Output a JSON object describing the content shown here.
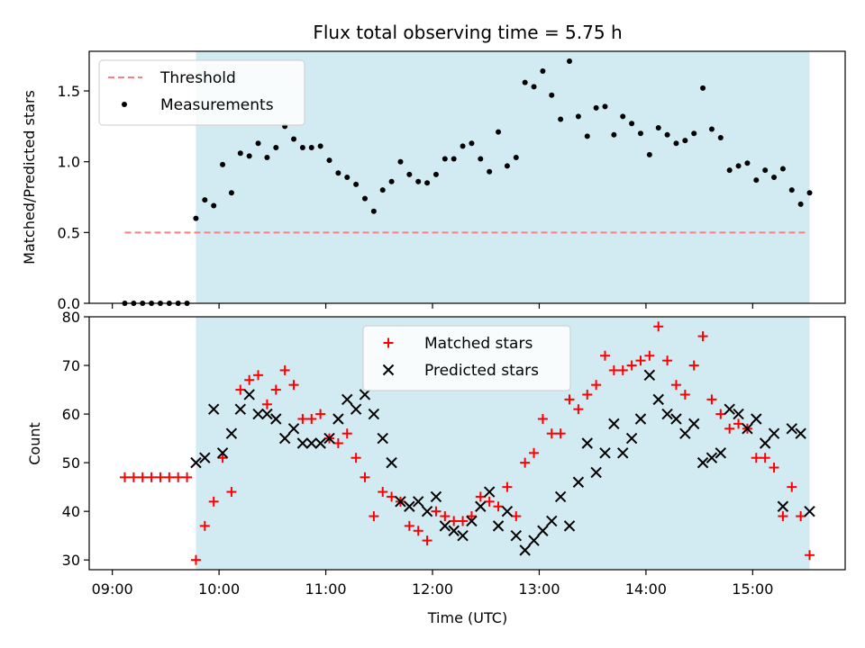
{
  "chart_data": [
    {
      "type": "scatter",
      "title": "Flux total observing time = 5.75 h",
      "ylabel": "Matched/Predicted stars",
      "xlabel": "",
      "ylim": [
        0,
        1.78
      ],
      "yticks": [
        "0.0",
        "0.5",
        "1.0",
        "1.5"
      ],
      "shaded_span": [
        "09:47",
        "15:32"
      ],
      "shade_color": "#add8e6",
      "legend_position": "top-left",
      "series": [
        {
          "name": "Threshold",
          "style": "dashed-line",
          "color": "#ff7f7f",
          "x": [
            "09:07",
            "15:30"
          ],
          "y": [
            0.5,
            0.5
          ]
        },
        {
          "name": "Measurements",
          "style": "dot",
          "color": "#000000",
          "x": [
            "09:07",
            "09:12",
            "09:17",
            "09:22",
            "09:27",
            "09:32",
            "09:37",
            "09:42",
            "09:47",
            "09:52",
            "09:57",
            "10:02",
            "10:07",
            "10:12",
            "10:17",
            "10:22",
            "10:27",
            "10:32",
            "10:37",
            "10:42",
            "10:47",
            "10:52",
            "10:57",
            "11:02",
            "11:07",
            "11:12",
            "11:17",
            "11:22",
            "11:27",
            "11:32",
            "11:37",
            "11:42",
            "11:47",
            "11:52",
            "11:57",
            "12:02",
            "12:07",
            "12:12",
            "12:17",
            "12:22",
            "12:27",
            "12:32",
            "12:37",
            "12:42",
            "12:47",
            "12:52",
            "12:57",
            "13:02",
            "13:07",
            "13:12",
            "13:17",
            "13:22",
            "13:27",
            "13:32",
            "13:37",
            "13:42",
            "13:47",
            "13:52",
            "13:57",
            "14:02",
            "14:07",
            "14:12",
            "14:17",
            "14:22",
            "14:27",
            "14:32",
            "14:37",
            "14:42",
            "14:47",
            "14:52",
            "14:57",
            "15:02",
            "15:07",
            "15:12",
            "15:17",
            "15:22",
            "15:27",
            "15:32"
          ],
          "y": [
            0,
            0,
            0,
            0,
            0,
            0,
            0,
            0,
            0.6,
            0.73,
            0.69,
            0.98,
            0.78,
            1.06,
            1.04,
            1.13,
            1.03,
            1.1,
            1.25,
            1.16,
            1.1,
            1.1,
            1.11,
            1.01,
            0.92,
            0.89,
            0.84,
            0.74,
            0.65,
            0.8,
            0.86,
            1.0,
            0.91,
            0.86,
            0.85,
            0.91,
            1.02,
            1.02,
            1.11,
            1.13,
            1.02,
            0.93,
            1.21,
            0.97,
            1.03,
            1.56,
            1.53,
            1.64,
            1.47,
            1.3,
            1.71,
            1.32,
            1.18,
            1.38,
            1.39,
            1.19,
            1.32,
            1.27,
            1.2,
            1.05,
            1.24,
            1.19,
            1.13,
            1.15,
            1.2,
            1.52,
            1.23,
            1.17,
            0.94,
            0.97,
            0.99,
            0.87,
            0.94,
            0.89,
            0.95,
            0.8,
            0.7,
            0.78
          ]
        }
      ]
    },
    {
      "type": "scatter",
      "title": "",
      "xlabel": "Time (UTC)",
      "ylabel": "Count",
      "ylim": [
        28,
        80
      ],
      "yticks": [
        "30",
        "40",
        "50",
        "60",
        "70",
        "80"
      ],
      "xticks": [
        "09:00",
        "10:00",
        "11:00",
        "12:00",
        "13:00",
        "14:00",
        "15:00"
      ],
      "xlim": [
        "08:47",
        "15:52"
      ],
      "shaded_span": [
        "09:47",
        "15:32"
      ],
      "shade_color": "#add8e6",
      "legend_position": "top-center",
      "series": [
        {
          "name": "Matched stars",
          "style": "plus",
          "color": "#ff0000",
          "x": [
            "09:07",
            "09:12",
            "09:17",
            "09:22",
            "09:27",
            "09:32",
            "09:37",
            "09:42",
            "09:47",
            "09:52",
            "09:57",
            "10:02",
            "10:07",
            "10:12",
            "10:17",
            "10:22",
            "10:27",
            "10:32",
            "10:37",
            "10:42",
            "10:47",
            "10:52",
            "10:57",
            "11:02",
            "11:07",
            "11:12",
            "11:17",
            "11:22",
            "11:27",
            "11:32",
            "11:37",
            "11:42",
            "11:47",
            "11:52",
            "11:57",
            "12:02",
            "12:07",
            "12:12",
            "12:17",
            "12:22",
            "12:27",
            "12:32",
            "12:37",
            "12:42",
            "12:47",
            "12:52",
            "12:57",
            "13:02",
            "13:07",
            "13:12",
            "13:17",
            "13:22",
            "13:27",
            "13:32",
            "13:37",
            "13:42",
            "13:47",
            "13:52",
            "13:57",
            "14:02",
            "14:07",
            "14:12",
            "14:17",
            "14:22",
            "14:27",
            "14:32",
            "14:37",
            "14:42",
            "14:47",
            "14:52",
            "14:57",
            "15:02",
            "15:07",
            "15:12",
            "15:17",
            "15:22",
            "15:27",
            "15:32"
          ],
          "y": [
            47,
            47,
            47,
            47,
            47,
            47,
            47,
            47,
            30,
            37,
            42,
            51,
            44,
            65,
            67,
            68,
            62,
            65,
            69,
            66,
            59,
            59,
            60,
            55,
            54,
            56,
            51,
            47,
            39,
            44,
            43,
            42,
            37,
            36,
            34,
            40,
            39,
            38,
            38,
            39,
            43,
            42,
            41,
            45,
            39,
            50,
            52,
            59,
            56,
            56,
            63,
            61,
            64,
            66,
            72,
            69,
            69,
            70,
            71,
            72,
            78,
            71,
            66,
            64,
            70,
            76,
            63,
            60,
            57,
            58,
            57,
            51,
            51,
            49,
            39,
            45,
            39,
            31
          ]
        },
        {
          "name": "Predicted stars",
          "style": "x",
          "color": "#000000",
          "x": [
            "09:47",
            "09:52",
            "09:57",
            "10:02",
            "10:07",
            "10:12",
            "10:17",
            "10:22",
            "10:27",
            "10:32",
            "10:37",
            "10:42",
            "10:47",
            "10:52",
            "10:57",
            "11:02",
            "11:07",
            "11:12",
            "11:17",
            "11:22",
            "11:27",
            "11:32",
            "11:37",
            "11:42",
            "11:47",
            "11:52",
            "11:57",
            "12:02",
            "12:07",
            "12:12",
            "12:17",
            "12:22",
            "12:27",
            "12:32",
            "12:37",
            "12:42",
            "12:47",
            "12:52",
            "12:57",
            "13:02",
            "13:07",
            "13:12",
            "13:17",
            "13:22",
            "13:27",
            "13:32",
            "13:37",
            "13:42",
            "13:47",
            "13:52",
            "13:57",
            "14:02",
            "14:07",
            "14:12",
            "14:17",
            "14:22",
            "14:27",
            "14:32",
            "14:37",
            "14:42",
            "14:47",
            "14:52",
            "14:57",
            "15:02",
            "15:07",
            "15:12",
            "15:17",
            "15:22",
            "15:27",
            "15:32"
          ],
          "y": [
            50,
            51,
            61,
            52,
            56,
            61,
            64,
            60,
            60,
            59,
            55,
            57,
            54,
            54,
            54,
            55,
            59,
            63,
            61,
            64,
            60,
            55,
            50,
            42,
            41,
            42,
            40,
            43,
            37,
            36,
            35,
            38,
            41,
            44,
            37,
            40,
            35,
            32,
            34,
            36,
            38,
            43,
            37,
            46,
            54,
            48,
            52,
            58,
            52,
            55,
            59,
            68,
            63,
            60,
            59,
            56,
            58,
            50,
            51,
            52,
            61,
            60,
            57,
            59,
            54,
            56,
            41,
            57,
            56,
            40
          ]
        }
      ]
    }
  ]
}
